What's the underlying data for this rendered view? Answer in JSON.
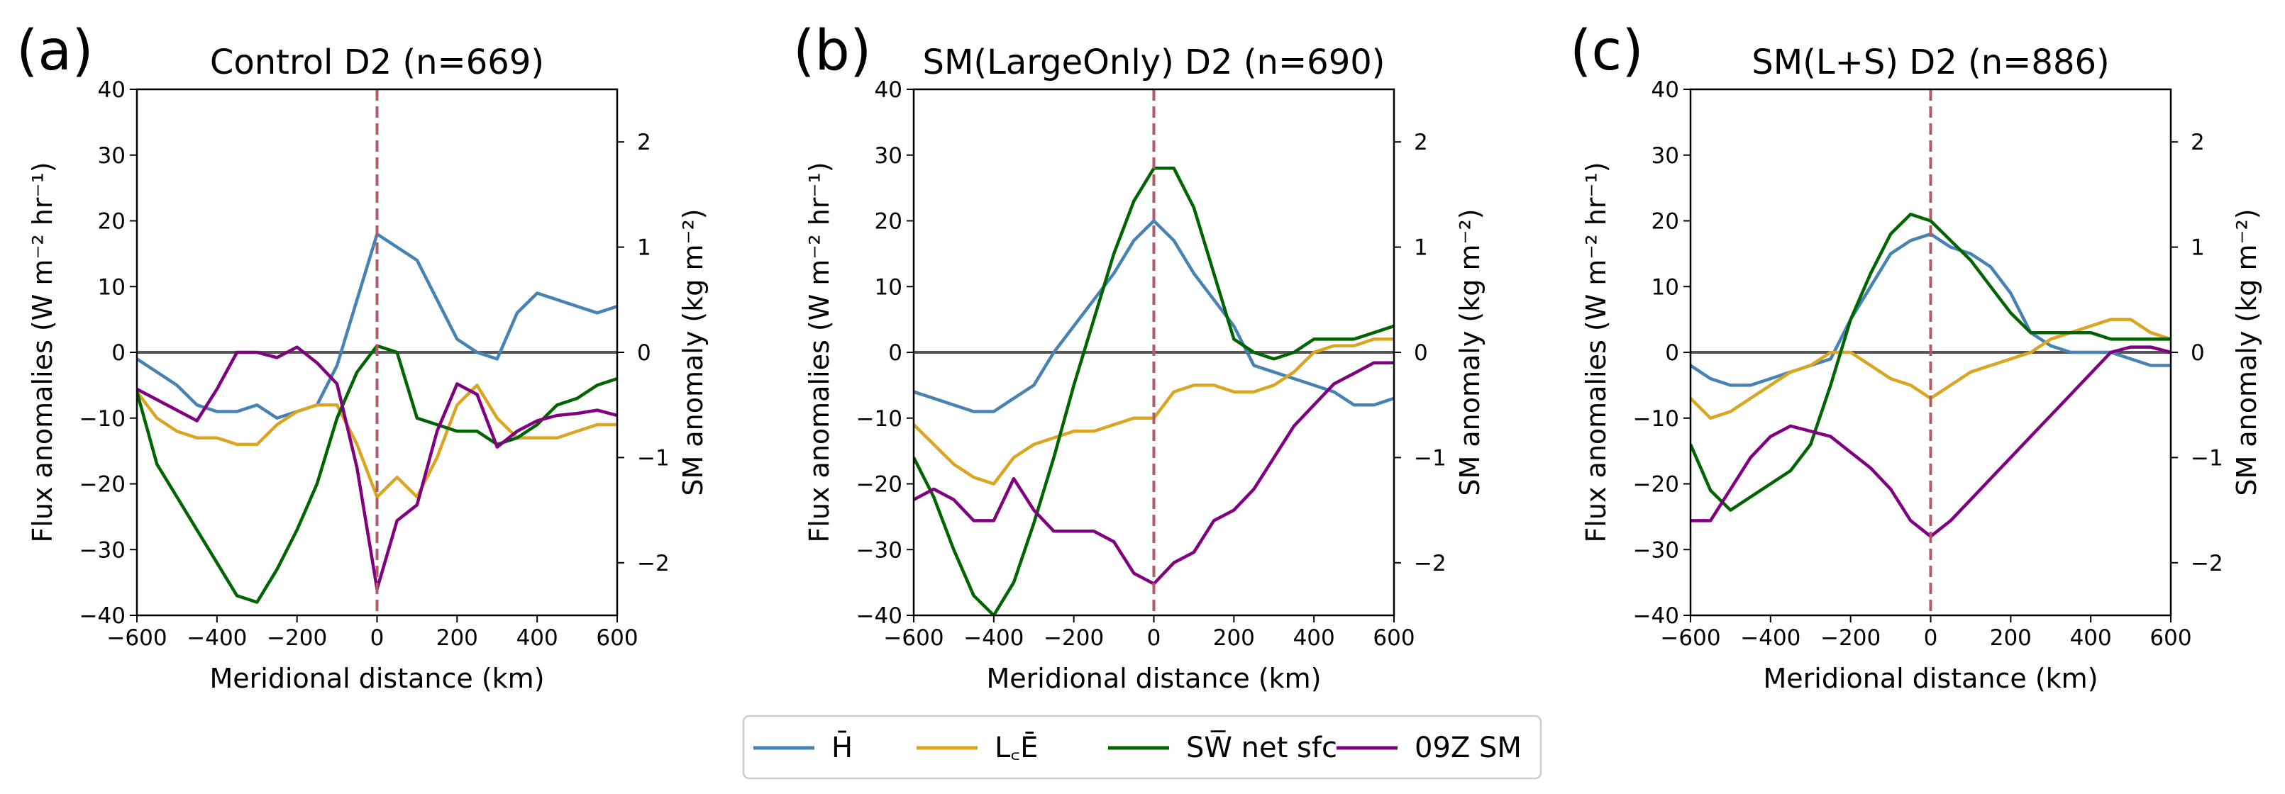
{
  "legend": [
    {
      "label": "H̄",
      "color": "#4682b4",
      "icon": "line-swatch"
    },
    {
      "label": "L꜀Ē",
      "color": "#daa520",
      "icon": "line-swatch"
    },
    {
      "label": "SW̅ net sfc",
      "color": "#006400",
      "icon": "line-swatch"
    },
    {
      "label": "09Z SM",
      "color": "#800080",
      "icon": "line-swatch"
    }
  ],
  "colors": {
    "H": "#4682b4",
    "LE": "#daa520",
    "SW": "#006400",
    "SM": "#800080",
    "vline": "#b05a66",
    "zero": "#555555"
  },
  "chart_data": [
    {
      "type": "line",
      "panel_label": "(a)",
      "title": "Control D2 (n=669)",
      "xlabel": "Meridional distance (km)",
      "ylabel": "Flux anomalies (W m⁻² hr⁻¹)",
      "ylabel_right": "SM anomaly (kg m⁻²)",
      "xlim": [
        -600,
        600
      ],
      "ylim": [
        -40,
        40
      ],
      "ylim_right": [
        -2.5,
        2.5
      ],
      "xticks": [
        -600,
        -400,
        -200,
        0,
        200,
        400,
        600
      ],
      "yticks": [
        -40,
        -30,
        -20,
        -10,
        0,
        10,
        20,
        30,
        40
      ],
      "yticks_right": [
        -2,
        -1,
        0,
        1,
        2
      ],
      "x": [
        -600,
        -550,
        -500,
        -450,
        -400,
        -350,
        -300,
        -250,
        -200,
        -150,
        -100,
        -50,
        0,
        50,
        100,
        150,
        200,
        250,
        300,
        350,
        400,
        450,
        500,
        550,
        600
      ],
      "series": [
        {
          "key": "H",
          "axis": "left",
          "values": [
            -1,
            -3,
            -5,
            -8,
            -9,
            -9,
            -8,
            -10,
            -9,
            -8,
            -2,
            8,
            18,
            16,
            14,
            8,
            2,
            0,
            -1,
            6,
            9,
            8,
            7,
            6,
            7
          ]
        },
        {
          "key": "LE",
          "axis": "left",
          "values": [
            -6,
            -10,
            -12,
            -13,
            -13,
            -14,
            -14,
            -11,
            -9,
            -8,
            -8,
            -14,
            -22,
            -19,
            -22,
            -16,
            -8,
            -5,
            -10,
            -13,
            -13,
            -13,
            -12,
            -11,
            -11
          ]
        },
        {
          "key": "SW",
          "axis": "left",
          "values": [
            -6,
            -17,
            -22,
            -27,
            -32,
            -37,
            -38,
            -33,
            -27,
            -20,
            -10,
            -3,
            1,
            0,
            -10,
            -11,
            -12,
            -12,
            -14,
            -13,
            -11,
            -8,
            -7,
            -5,
            -4
          ]
        },
        {
          "key": "SM",
          "axis": "right",
          "values": [
            -0.35,
            -0.45,
            -0.55,
            -0.65,
            -0.35,
            0.0,
            0.0,
            -0.05,
            0.05,
            -0.1,
            -0.3,
            -1.1,
            -2.25,
            -1.6,
            -1.45,
            -0.75,
            -0.3,
            -0.4,
            -0.9,
            -0.75,
            -0.65,
            -0.6,
            -0.58,
            -0.55,
            -0.6
          ]
        }
      ]
    },
    {
      "type": "line",
      "panel_label": "(b)",
      "title": "SM(LargeOnly) D2 (n=690)",
      "xlabel": "Meridional distance (km)",
      "ylabel": "Flux anomalies (W m⁻² hr⁻¹)",
      "ylabel_right": "SM anomaly (kg m⁻²)",
      "xlim": [
        -600,
        600
      ],
      "ylim": [
        -40,
        40
      ],
      "ylim_right": [
        -2.5,
        2.5
      ],
      "xticks": [
        -600,
        -400,
        -200,
        0,
        200,
        400,
        600
      ],
      "yticks": [
        -40,
        -30,
        -20,
        -10,
        0,
        10,
        20,
        30,
        40
      ],
      "yticks_right": [
        -2,
        -1,
        0,
        1,
        2
      ],
      "x": [
        -600,
        -550,
        -500,
        -450,
        -400,
        -350,
        -300,
        -250,
        -200,
        -150,
        -100,
        -50,
        0,
        50,
        100,
        150,
        200,
        250,
        300,
        350,
        400,
        450,
        500,
        550,
        600
      ],
      "series": [
        {
          "key": "H",
          "axis": "left",
          "values": [
            -6,
            -7,
            -8,
            -9,
            -9,
            -7,
            -5,
            0,
            4,
            8,
            12,
            17,
            20,
            17,
            12,
            8,
            4,
            -2,
            -3,
            -4,
            -5,
            -6,
            -8,
            -8,
            -7
          ]
        },
        {
          "key": "LE",
          "axis": "left",
          "values": [
            -11,
            -14,
            -17,
            -19,
            -20,
            -16,
            -14,
            -13,
            -12,
            -12,
            -11,
            -10,
            -10,
            -6,
            -5,
            -5,
            -6,
            -6,
            -5,
            -3,
            0,
            1,
            1,
            2,
            2
          ]
        },
        {
          "key": "SW",
          "axis": "left",
          "values": [
            -16,
            -22,
            -30,
            -37,
            -40,
            -35,
            -26,
            -16,
            -5,
            5,
            15,
            23,
            28,
            28,
            22,
            12,
            2,
            0,
            -1,
            0,
            2,
            2,
            2,
            3,
            4
          ]
        },
        {
          "key": "SM",
          "axis": "right",
          "values": [
            -1.4,
            -1.3,
            -1.4,
            -1.6,
            -1.6,
            -1.2,
            -1.5,
            -1.7,
            -1.7,
            -1.7,
            -1.8,
            -2.1,
            -2.2,
            -2.0,
            -1.9,
            -1.6,
            -1.5,
            -1.3,
            -1.0,
            -0.7,
            -0.5,
            -0.3,
            -0.2,
            -0.1,
            -0.1
          ]
        }
      ]
    },
    {
      "type": "line",
      "panel_label": "(c)",
      "title": "SM(L+S) D2 (n=886)",
      "xlabel": "Meridional distance (km)",
      "ylabel": "Flux anomalies (W m⁻² hr⁻¹)",
      "ylabel_right": "SM anomaly (kg m⁻²)",
      "xlim": [
        -600,
        600
      ],
      "ylim": [
        -40,
        40
      ],
      "ylim_right": [
        -2.5,
        2.5
      ],
      "xticks": [
        -600,
        -400,
        -200,
        0,
        200,
        400,
        600
      ],
      "yticks": [
        -40,
        -30,
        -20,
        -10,
        0,
        10,
        20,
        30,
        40
      ],
      "yticks_right": [
        -2,
        -1,
        0,
        1,
        2
      ],
      "x": [
        -600,
        -550,
        -500,
        -450,
        -400,
        -350,
        -300,
        -250,
        -200,
        -150,
        -100,
        -50,
        0,
        50,
        100,
        150,
        200,
        250,
        300,
        350,
        400,
        450,
        500,
        550,
        600
      ],
      "series": [
        {
          "key": "H",
          "axis": "left",
          "values": [
            -2,
            -4,
            -5,
            -5,
            -4,
            -3,
            -2,
            -1,
            5,
            10,
            15,
            17,
            18,
            16,
            15,
            13,
            9,
            3,
            1,
            0,
            0,
            0,
            -1,
            -2,
            -2
          ]
        },
        {
          "key": "LE",
          "axis": "left",
          "values": [
            -7,
            -10,
            -9,
            -7,
            -5,
            -3,
            -2,
            0,
            0,
            -2,
            -4,
            -5,
            -7,
            -5,
            -3,
            -2,
            -1,
            0,
            2,
            3,
            4,
            5,
            5,
            3,
            2
          ]
        },
        {
          "key": "SW",
          "axis": "left",
          "values": [
            -14,
            -21,
            -24,
            -22,
            -20,
            -18,
            -14,
            -5,
            5,
            12,
            18,
            21,
            20,
            17,
            14,
            10,
            6,
            3,
            3,
            3,
            3,
            2,
            2,
            2,
            2
          ]
        },
        {
          "key": "SM",
          "axis": "right",
          "values": [
            -1.6,
            -1.6,
            -1.3,
            -1.0,
            -0.8,
            -0.7,
            -0.75,
            -0.8,
            -0.95,
            -1.1,
            -1.3,
            -1.6,
            -1.75,
            -1.6,
            -1.4,
            -1.2,
            -1.0,
            -0.8,
            -0.6,
            -0.4,
            -0.2,
            0.0,
            0.05,
            0.05,
            0.0
          ]
        }
      ]
    }
  ]
}
